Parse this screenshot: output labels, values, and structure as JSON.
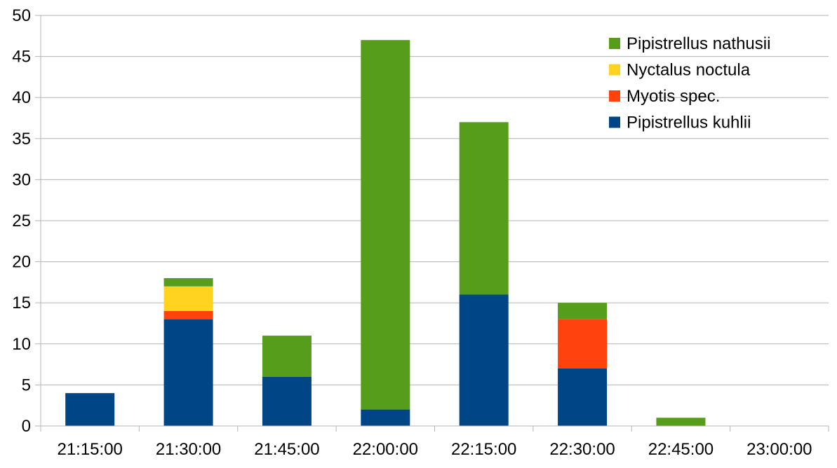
{
  "chart_data": {
    "type": "bar",
    "stacked": true,
    "categories": [
      "21:15:00",
      "21:30:00",
      "21:45:00",
      "22:00:00",
      "22:15:00",
      "22:30:00",
      "22:45:00",
      "23:00:00"
    ],
    "series": [
      {
        "name": "Pipistrellus kuhlii",
        "color": "#004586",
        "values": [
          4,
          13,
          6,
          2,
          16,
          7,
          0,
          0
        ]
      },
      {
        "name": "Myotis spec.",
        "color": "#FF420E",
        "values": [
          0,
          1,
          0,
          0,
          0,
          6,
          0,
          0
        ]
      },
      {
        "name": "Nyctalus noctula",
        "color": "#FFD320",
        "values": [
          0,
          3,
          0,
          0,
          0,
          0,
          0,
          0
        ]
      },
      {
        "name": "Pipistrellus nathusii",
        "color": "#579D1C",
        "values": [
          0,
          1,
          5,
          45,
          21,
          2,
          1,
          0
        ]
      }
    ],
    "legend_order": [
      "Pipistrellus nathusii",
      "Nyctalus noctula",
      "Myotis spec.",
      "Pipistrellus kuhlii"
    ],
    "ylim": [
      0,
      50
    ],
    "yticks": [
      0,
      5,
      10,
      15,
      20,
      25,
      30,
      35,
      40,
      45,
      50
    ],
    "grid": true,
    "legend_position": "top-right",
    "title": "",
    "xlabel": "",
    "ylabel": ""
  }
}
